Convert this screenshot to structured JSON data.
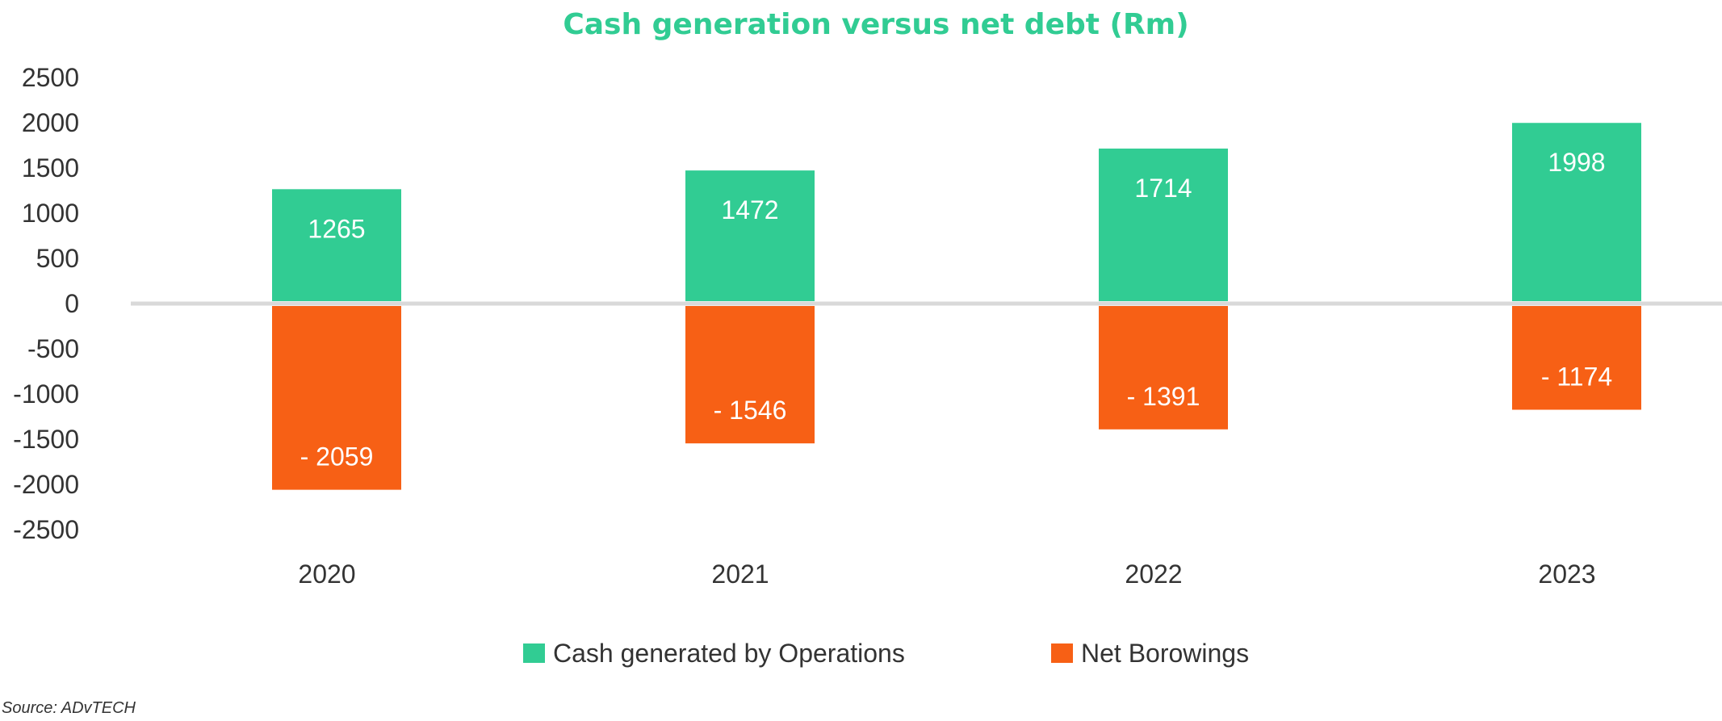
{
  "source": "Source: ADvTECH",
  "chart_data": {
    "type": "bar",
    "title": "Cash generation versus net debt (Rm)",
    "xlabel": "",
    "ylabel": "",
    "ylim": [
      -2500,
      2500
    ],
    "y_ticks": [
      2500,
      2000,
      1500,
      1000,
      500,
      0,
      -500,
      -1000,
      -1500,
      -2000,
      -2500
    ],
    "categories": [
      "2020",
      "2021",
      "2022",
      "2023"
    ],
    "stacked": true,
    "grid": false,
    "legend_position": "bottom",
    "series": [
      {
        "name": "Cash generated by Operations",
        "color": "#31CC93",
        "values": [
          1265,
          1472,
          1714,
          1998
        ],
        "labels": [
          "1265",
          "1472",
          "1714",
          "1998"
        ]
      },
      {
        "name": "Net Borowings",
        "color": "#F76015",
        "values": [
          -2059,
          -1546,
          -1391,
          -1174
        ],
        "labels": [
          "- 2059",
          "- 1546",
          "- 1391",
          "- 1174"
        ]
      }
    ],
    "colors": {
      "title": "#31CC93",
      "zero_line": "#D9D9D9"
    }
  }
}
